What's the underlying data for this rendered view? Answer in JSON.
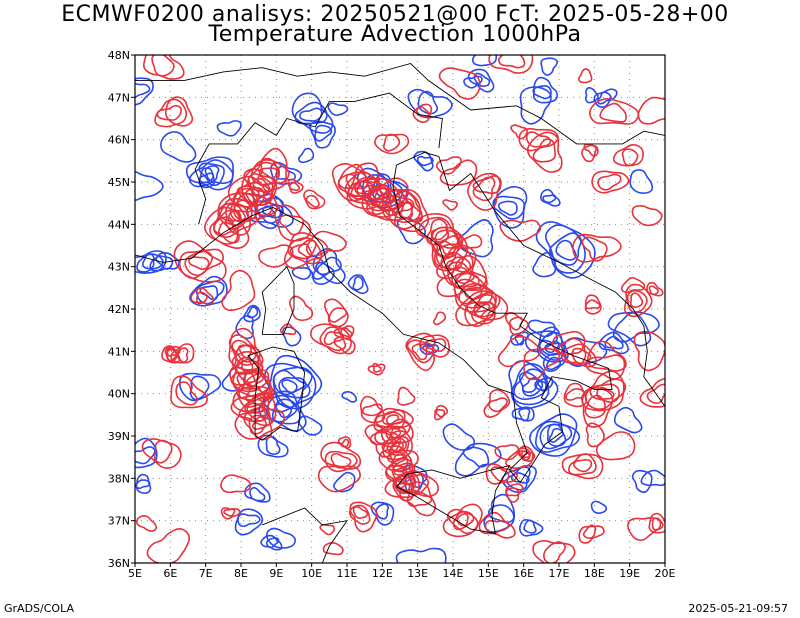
{
  "header": {
    "title_line1": "ECMWF0200 analisys: 20250521@00 FcT: 2025-05-28+00",
    "title_line2": "Temperature Advection 1000hPa"
  },
  "footer": {
    "left": "GrADS/COLA",
    "right": "2025-05-21-09:57"
  },
  "map": {
    "lon_ticks": [
      "5E",
      "6E",
      "7E",
      "8E",
      "9E",
      "10E",
      "11E",
      "12E",
      "13E",
      "14E",
      "15E",
      "16E",
      "17E",
      "18E",
      "19E",
      "20E"
    ],
    "lat_ticks": [
      "36N",
      "37N",
      "38N",
      "39N",
      "40N",
      "41N",
      "42N",
      "43N",
      "44N",
      "45N",
      "46N",
      "47N",
      "48N"
    ],
    "lon_range": [
      5,
      20
    ],
    "lat_range": [
      36,
      48
    ],
    "gridlines": "dotted",
    "colors": {
      "warm_advection": "#e8323c",
      "cold_advection": "#2a49ee",
      "coastline": "#000000"
    }
  }
}
